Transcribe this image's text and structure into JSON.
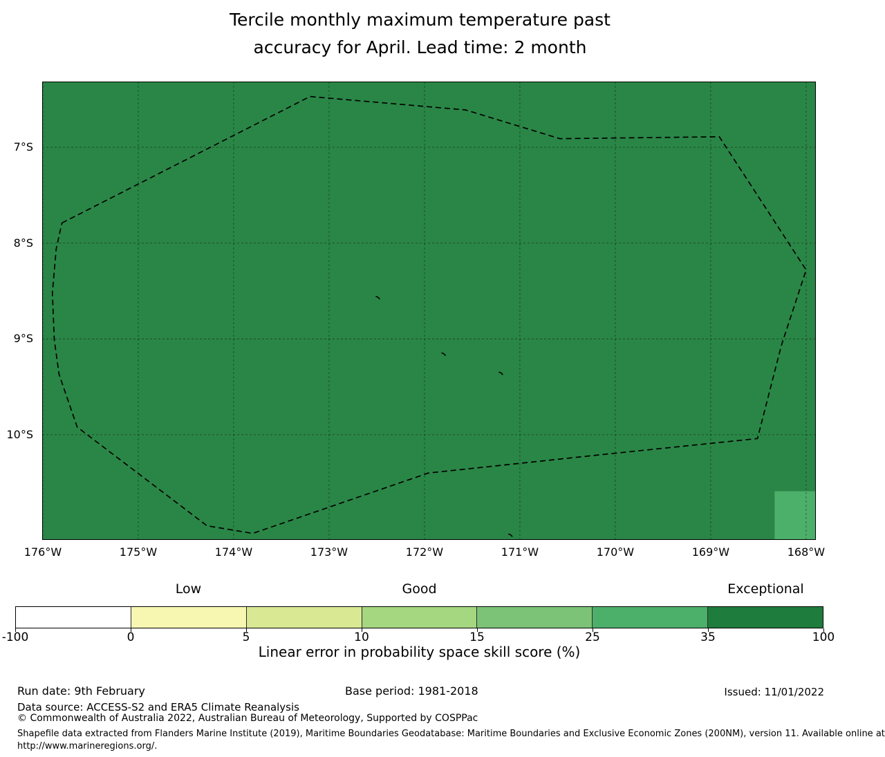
{
  "chart_data": {
    "type": "heatmap",
    "title": "Tercile monthly maximum temperature past accuracy for April. Lead time: 2 month",
    "title_lines": [
      "Tercile monthly maximum temperature past",
      "accuracy for April. Lead time: 2 month"
    ],
    "colorbar_label": "Linear error in probability space skill score (%)",
    "x_axis": {
      "range_degW": [
        176.007,
        167.898
      ],
      "grid_degW": [
        176,
        175,
        174,
        173,
        172,
        171,
        170,
        169,
        168
      ],
      "tick_positions_degW": [
        176,
        175,
        174,
        173,
        172,
        171,
        170,
        169,
        168
      ],
      "tick_labels": [
        "176°W",
        "175°W",
        "174°W",
        "173°W",
        "172°W",
        "171°W",
        "170°W",
        "169°W",
        "168°W"
      ]
    },
    "y_axis": {
      "range_degS": [
        6.314,
        11.098
      ],
      "grid_degS": [
        7,
        8,
        9,
        10
      ],
      "tick_positions_degS": [
        7,
        8,
        9,
        10
      ],
      "tick_labels": [
        "7°S",
        "8°S",
        "9°S",
        "10°S"
      ]
    },
    "map": {
      "fill_color": "#2a8646",
      "grid_color": "rgba(0,0,0,0.45)",
      "boundary_color": "#000000",
      "skill_bucket_pct": "35-100",
      "highlight_cell": {
        "lonW": [
          168.33,
          167.898
        ],
        "latS": [
          10.59,
          11.098
        ],
        "color": "#4caf6a",
        "skill_bucket_pct": "25-35"
      },
      "eez_boundary_lonW_latS": [
        [
          175.8,
          7.79
        ],
        [
          173.2,
          6.47
        ],
        [
          171.57,
          6.61
        ],
        [
          170.58,
          6.91
        ],
        [
          168.91,
          6.89
        ],
        [
          168.0,
          8.28
        ],
        [
          168.26,
          9.07
        ],
        [
          168.51,
          10.04
        ],
        [
          170.07,
          10.2
        ],
        [
          171.96,
          10.4
        ],
        [
          173.8,
          11.03
        ],
        [
          174.28,
          10.95
        ],
        [
          175.64,
          9.92
        ],
        [
          175.83,
          9.37
        ],
        [
          175.88,
          9.01
        ],
        [
          175.9,
          8.52
        ],
        [
          175.86,
          8.06
        ]
      ],
      "islands_lonW_latS": [
        [
          172.49,
          8.57
        ],
        [
          171.8,
          9.16
        ],
        [
          171.2,
          9.36
        ],
        [
          171.1,
          11.05
        ]
      ]
    },
    "colorbar": {
      "boundaries_pct": [
        -100,
        0,
        5,
        10,
        15,
        25,
        35,
        100
      ],
      "tick_labels": [
        "-100",
        "0",
        "5",
        "10",
        "15",
        "25",
        "35",
        "100"
      ],
      "segment_colors": [
        "#ffffff",
        "#f7f7b2",
        "#d9e893",
        "#a5d680",
        "#7cc377",
        "#4caf6a",
        "#1e7c3c"
      ],
      "category_labels": [
        {
          "label": "Low",
          "segment_index": 1
        },
        {
          "label": "Good",
          "segment_index": 3
        },
        {
          "label": "Exceptional",
          "segment_index": 6
        }
      ]
    }
  },
  "footer": {
    "run_date": "Run date: 9th February",
    "base_period": "Base period: 1981-2018",
    "issued": "Issued: 11/01/2022",
    "data_source": "Data source: ACCESS-S2 and ERA5 Climate Reanalysis",
    "copyright": "© Commonwealth of Australia 2022, Australian Bureau of Meteorology, Supported by COSPPac",
    "shapefile_note": "Shapefile data extracted from Flanders Marine Institute (2019), Maritime Boundaries Geodatabase: Maritime Boundaries and Exclusive Economic Zones (200NM), version 11. Available online at",
    "shapefile_url": "http://www.marineregions.org/."
  }
}
